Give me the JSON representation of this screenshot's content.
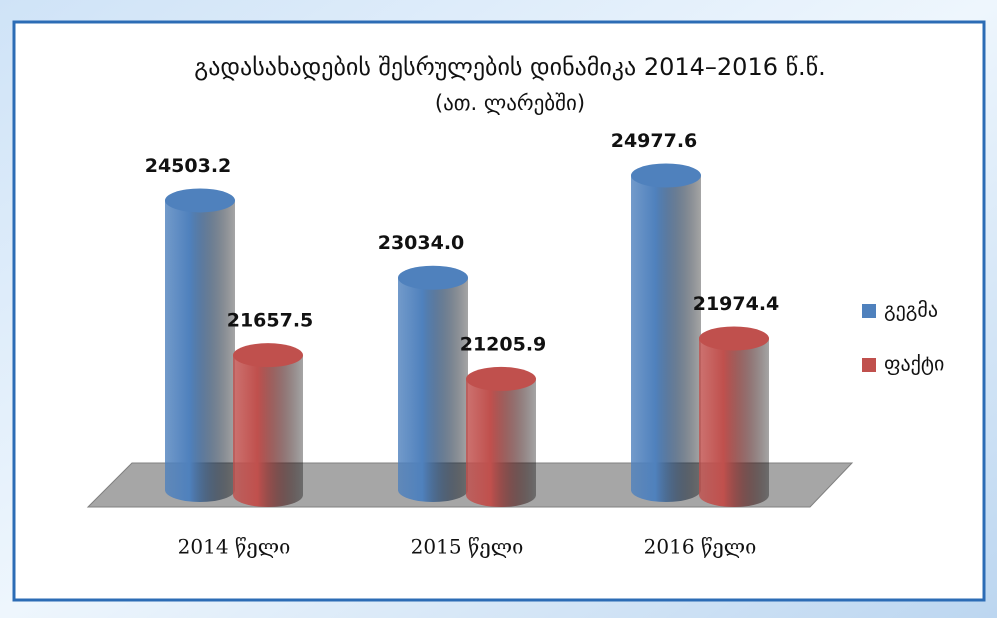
{
  "chart_data": {
    "type": "bar",
    "title": "გადასახადების შესრულების დინამიკა 2014–2016 წ.წ.",
    "subtitle": "(ათ. ლარებში)",
    "categories": [
      "2014 წელი",
      "2015 წელი",
      "2016 წელი"
    ],
    "series": [
      {
        "name": "გეგმა",
        "color": "#4f81bd",
        "values": [
          24503.2,
          23034.0,
          24977.6
        ],
        "value_labels": [
          "24503.2",
          "23034.0",
          "24977.6"
        ]
      },
      {
        "name": "ფაქტი",
        "color": "#c0504d",
        "values": [
          21657.5,
          21205.9,
          21974.4
        ],
        "value_labels": [
          "21657.5",
          "21205.9",
          "21974.4"
        ]
      }
    ],
    "ylim": [
      19000,
      25500
    ],
    "legend": "right"
  }
}
